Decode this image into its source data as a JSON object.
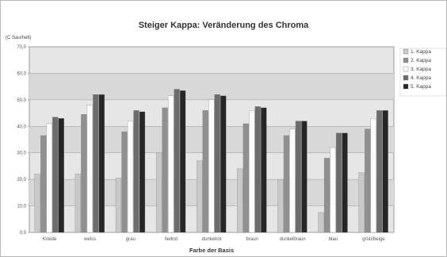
{
  "chart_data": {
    "type": "bar",
    "title": "Steiger Kappa: Veränderung des Chroma",
    "ylabel": "(C Saurhelt)",
    "xlabel": "Farbe der Basis",
    "ylim": [
      0,
      70
    ],
    "yticks": [
      "0,0",
      "10,0",
      "20,0",
      "30,0",
      "40,0",
      "50,0",
      "60,0",
      "70,0"
    ],
    "grid": true,
    "legend_position": "right",
    "categories": [
      "Kreide",
      "weiss",
      "grau",
      "hellrot",
      "dunkelrot",
      "braun",
      "dunkelbraun",
      "blau",
      "grün/beige"
    ],
    "series": [
      {
        "name": "1. Kappa",
        "color": "#c9c9c9",
        "values": [
          22.0,
          22.0,
          20.5,
          30.0,
          27.0,
          24.0,
          20.0,
          7.5,
          22.5
        ]
      },
      {
        "name": "2. Kappa",
        "color": "#909090",
        "values": [
          36.5,
          44.5,
          38.0,
          47.0,
          46.0,
          41.0,
          36.5,
          28.0,
          39.0
        ]
      },
      {
        "name": "3. Kappa",
        "color": "#fbfbfb",
        "values": [
          41.0,
          48.0,
          42.0,
          51.5,
          50.0,
          46.0,
          39.0,
          32.0,
          43.0
        ]
      },
      {
        "name": "4. Kappa",
        "color": "#6c6c6c",
        "values": [
          43.5,
          52.0,
          46.0,
          54.0,
          52.0,
          47.5,
          42.0,
          37.5,
          46.0
        ]
      },
      {
        "name": "5. Kappa",
        "color": "#262626",
        "values": [
          43.0,
          52.0,
          45.5,
          53.5,
          51.5,
          47.0,
          42.0,
          37.5,
          46.0
        ]
      }
    ]
  }
}
